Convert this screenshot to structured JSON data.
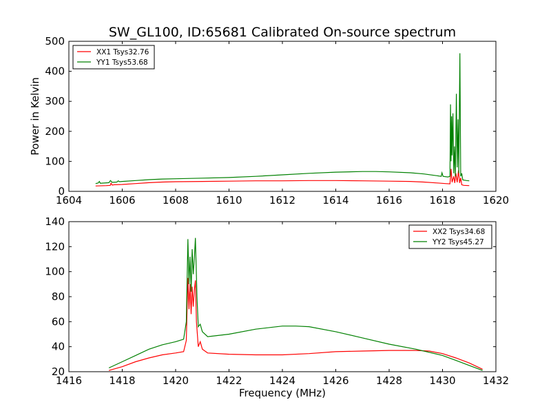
{
  "chart_data": [
    {
      "type": "line",
      "title": "SW_GL100, ID:65681 Calibrated On-source spectrum",
      "xlabel": "",
      "ylabel": "Power in Kelvin",
      "xlim": [
        1604,
        1620
      ],
      "ylim": [
        0,
        500
      ],
      "xticks": [
        1604,
        1606,
        1608,
        1610,
        1612,
        1614,
        1616,
        1618,
        1620
      ],
      "yticks": [
        0,
        100,
        200,
        300,
        400,
        500
      ],
      "legend_position": "top-left",
      "series": [
        {
          "name": "XX1 Tsys32.76",
          "color": "#ff0000",
          "points": [
            [
              1605.0,
              18
            ],
            [
              1605.4,
              19
            ],
            [
              1605.55,
              20
            ],
            [
              1605.58,
              27
            ],
            [
              1605.62,
              21
            ],
            [
              1605.7,
              22
            ],
            [
              1606.0,
              23
            ],
            [
              1606.5,
              26
            ],
            [
              1607.0,
              29
            ],
            [
              1607.5,
              31
            ],
            [
              1608.0,
              32
            ],
            [
              1609.0,
              33
            ],
            [
              1610.0,
              34
            ],
            [
              1611.0,
              35
            ],
            [
              1612.0,
              35
            ],
            [
              1613.0,
              36
            ],
            [
              1614.0,
              36
            ],
            [
              1615.0,
              35
            ],
            [
              1616.0,
              34
            ],
            [
              1616.8,
              33
            ],
            [
              1617.3,
              31
            ],
            [
              1617.8,
              28
            ],
            [
              1618.1,
              26
            ],
            [
              1618.28,
              25
            ],
            [
              1618.32,
              75
            ],
            [
              1618.36,
              30
            ],
            [
              1618.42,
              50
            ],
            [
              1618.46,
              28
            ],
            [
              1618.5,
              60
            ],
            [
              1618.55,
              30
            ],
            [
              1618.6,
              70
            ],
            [
              1618.64,
              28
            ],
            [
              1618.68,
              45
            ],
            [
              1618.72,
              22
            ],
            [
              1618.8,
              20
            ],
            [
              1619.0,
              19
            ]
          ]
        },
        {
          "name": "YY1 Tsys53.68",
          "color": "#008000",
          "points": [
            [
              1605.0,
              26
            ],
            [
              1605.1,
              28
            ],
            [
              1605.14,
              33
            ],
            [
              1605.18,
              27
            ],
            [
              1605.5,
              29
            ],
            [
              1605.56,
              36
            ],
            [
              1605.62,
              30
            ],
            [
              1605.8,
              31
            ],
            [
              1605.85,
              35
            ],
            [
              1605.9,
              32
            ],
            [
              1606.0,
              33
            ],
            [
              1606.5,
              36
            ],
            [
              1607.0,
              39
            ],
            [
              1607.5,
              41
            ],
            [
              1608.0,
              42
            ],
            [
              1609.0,
              44
            ],
            [
              1610.0,
              46
            ],
            [
              1611.0,
              50
            ],
            [
              1612.0,
              55
            ],
            [
              1613.0,
              60
            ],
            [
              1614.0,
              64
            ],
            [
              1615.0,
              66
            ],
            [
              1615.5,
              66
            ],
            [
              1616.0,
              65
            ],
            [
              1616.8,
              62
            ],
            [
              1617.3,
              58
            ],
            [
              1617.8,
              52
            ],
            [
              1617.95,
              50
            ],
            [
              1617.98,
              62
            ],
            [
              1618.02,
              50
            ],
            [
              1618.2,
              48
            ],
            [
              1618.28,
              50
            ],
            [
              1618.3,
              290
            ],
            [
              1618.32,
              100
            ],
            [
              1618.34,
              250
            ],
            [
              1618.36,
              120
            ],
            [
              1618.39,
              260
            ],
            [
              1618.42,
              60
            ],
            [
              1618.45,
              150
            ],
            [
              1618.48,
              50
            ],
            [
              1618.52,
              325
            ],
            [
              1618.55,
              80
            ],
            [
              1618.58,
              240
            ],
            [
              1618.61,
              60
            ],
            [
              1618.65,
              460
            ],
            [
              1618.68,
              50
            ],
            [
              1618.72,
              60
            ],
            [
              1618.76,
              38
            ],
            [
              1618.9,
              36
            ],
            [
              1619.0,
              35
            ]
          ]
        }
      ]
    },
    {
      "type": "line",
      "title": "",
      "xlabel": "Frequency (MHz)",
      "ylabel": "",
      "xlim": [
        1416,
        1432
      ],
      "ylim": [
        20,
        140
      ],
      "xticks": [
        1416,
        1418,
        1420,
        1422,
        1424,
        1426,
        1428,
        1430,
        1432
      ],
      "yticks": [
        20,
        40,
        60,
        80,
        100,
        120,
        140
      ],
      "legend_position": "top-right",
      "series": [
        {
          "name": "XX2 Tsys34.68",
          "color": "#ff0000",
          "points": [
            [
              1417.5,
              21
            ],
            [
              1418.0,
              24
            ],
            [
              1418.5,
              28
            ],
            [
              1419.0,
              31
            ],
            [
              1419.5,
              33.5
            ],
            [
              1420.0,
              35
            ],
            [
              1420.3,
              36
            ],
            [
              1420.4,
              45
            ],
            [
              1420.46,
              95
            ],
            [
              1420.5,
              70
            ],
            [
              1420.54,
              90
            ],
            [
              1420.58,
              66
            ],
            [
              1420.62,
              88
            ],
            [
              1420.66,
              72
            ],
            [
              1420.7,
              85
            ],
            [
              1420.74,
              93
            ],
            [
              1420.78,
              60
            ],
            [
              1420.85,
              40
            ],
            [
              1420.92,
              44
            ],
            [
              1421.0,
              38
            ],
            [
              1421.2,
              35
            ],
            [
              1422.0,
              34
            ],
            [
              1423.0,
              33.5
            ],
            [
              1424.0,
              33.5
            ],
            [
              1425.0,
              34.5
            ],
            [
              1426.0,
              36
            ],
            [
              1427.0,
              36.5
            ],
            [
              1428.0,
              37
            ],
            [
              1429.0,
              37
            ],
            [
              1429.5,
              36.5
            ],
            [
              1430.0,
              34.5
            ],
            [
              1430.5,
              31
            ],
            [
              1431.0,
              27
            ],
            [
              1431.5,
              22
            ]
          ]
        },
        {
          "name": "YY2 Tsys45.27",
          "color": "#008000",
          "points": [
            [
              1417.5,
              23
            ],
            [
              1418.0,
              28
            ],
            [
              1418.5,
              33
            ],
            [
              1419.0,
              38
            ],
            [
              1419.5,
              41.5
            ],
            [
              1420.0,
              44
            ],
            [
              1420.3,
              46
            ],
            [
              1420.4,
              60
            ],
            [
              1420.46,
              126
            ],
            [
              1420.5,
              90
            ],
            [
              1420.54,
              112
            ],
            [
              1420.58,
              84
            ],
            [
              1420.62,
              118
            ],
            [
              1420.66,
              98
            ],
            [
              1420.7,
              110
            ],
            [
              1420.74,
              127
            ],
            [
              1420.8,
              80
            ],
            [
              1420.85,
              56
            ],
            [
              1420.92,
              58
            ],
            [
              1421.0,
              52
            ],
            [
              1421.2,
              48
            ],
            [
              1422.0,
              50
            ],
            [
              1423.0,
              54
            ],
            [
              1424.0,
              56.5
            ],
            [
              1424.5,
              56.5
            ],
            [
              1425.0,
              56
            ],
            [
              1426.0,
              52
            ],
            [
              1427.0,
              47
            ],
            [
              1428.0,
              42
            ],
            [
              1429.0,
              38
            ],
            [
              1430.0,
              33
            ],
            [
              1430.5,
              29
            ],
            [
              1431.0,
              25
            ],
            [
              1431.5,
              21
            ]
          ]
        }
      ]
    }
  ]
}
